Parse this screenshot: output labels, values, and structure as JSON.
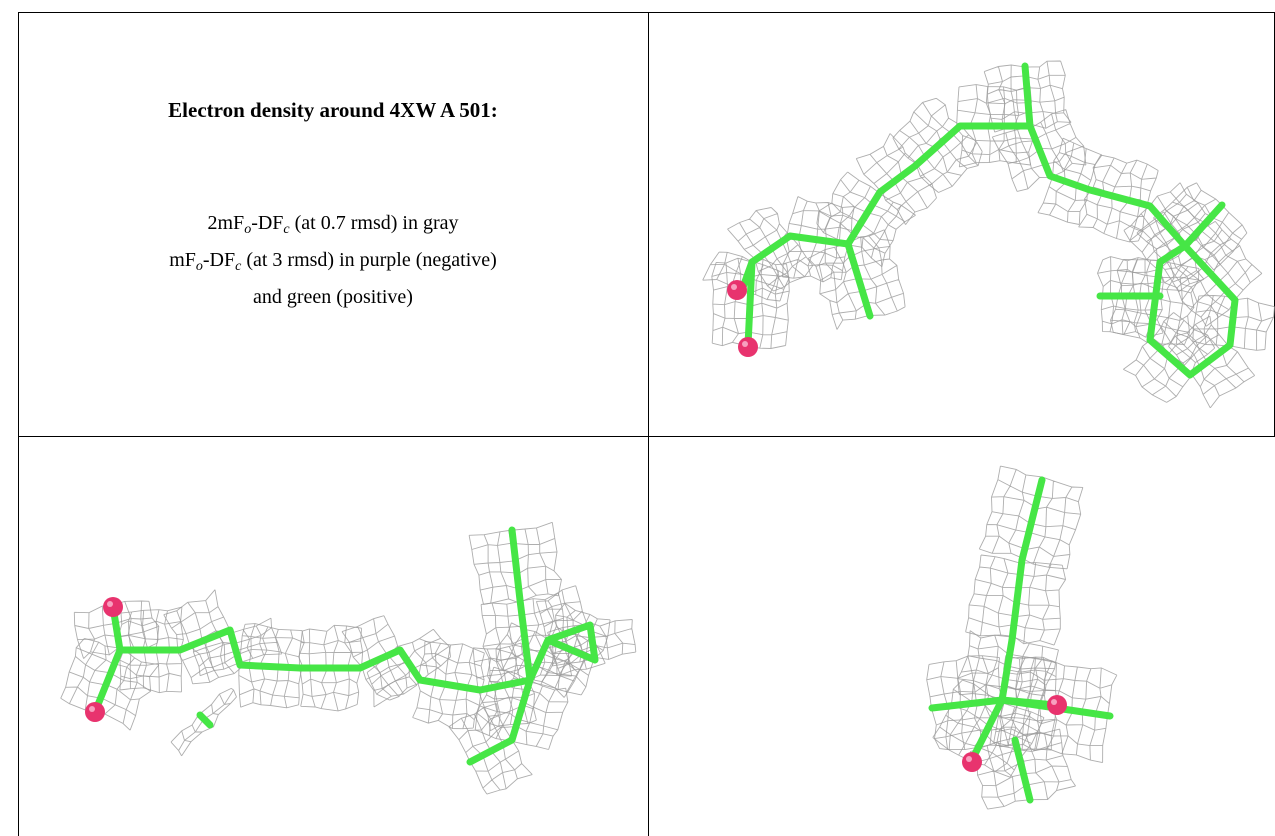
{
  "heading": "Electron density around 4XW A 501:",
  "caption": {
    "lines": [
      [
        "2mF",
        "o",
        "-DF",
        "c",
        " (at 0.7 rmsd) in gray"
      ],
      [
        "mF",
        "o",
        "-DF",
        "c",
        " (at 3 rmsd) in purple (negative)"
      ],
      [
        "and green (positive)"
      ]
    ]
  }
}
